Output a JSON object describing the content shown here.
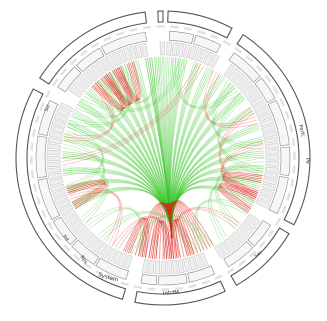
{
  "colors": {
    "edge_source": "#2ec21c",
    "edge_target": "#e0221a",
    "group_ring": "#555555",
    "leaf_cell": "#eeeeee",
    "leaf_cell_stroke": "#b4b4b4"
  },
  "diagram": {
    "type": "hierarchical-edge-bundling",
    "visible_labels": {
      "system": "System",
      "intrfm": "IntrfM",
      "res": "Res",
      "int": "Int",
      "perfc": "Perfc",
      "pe": "Pe",
      "sec": "Sec",
      "sid": "Sid"
    }
  }
}
